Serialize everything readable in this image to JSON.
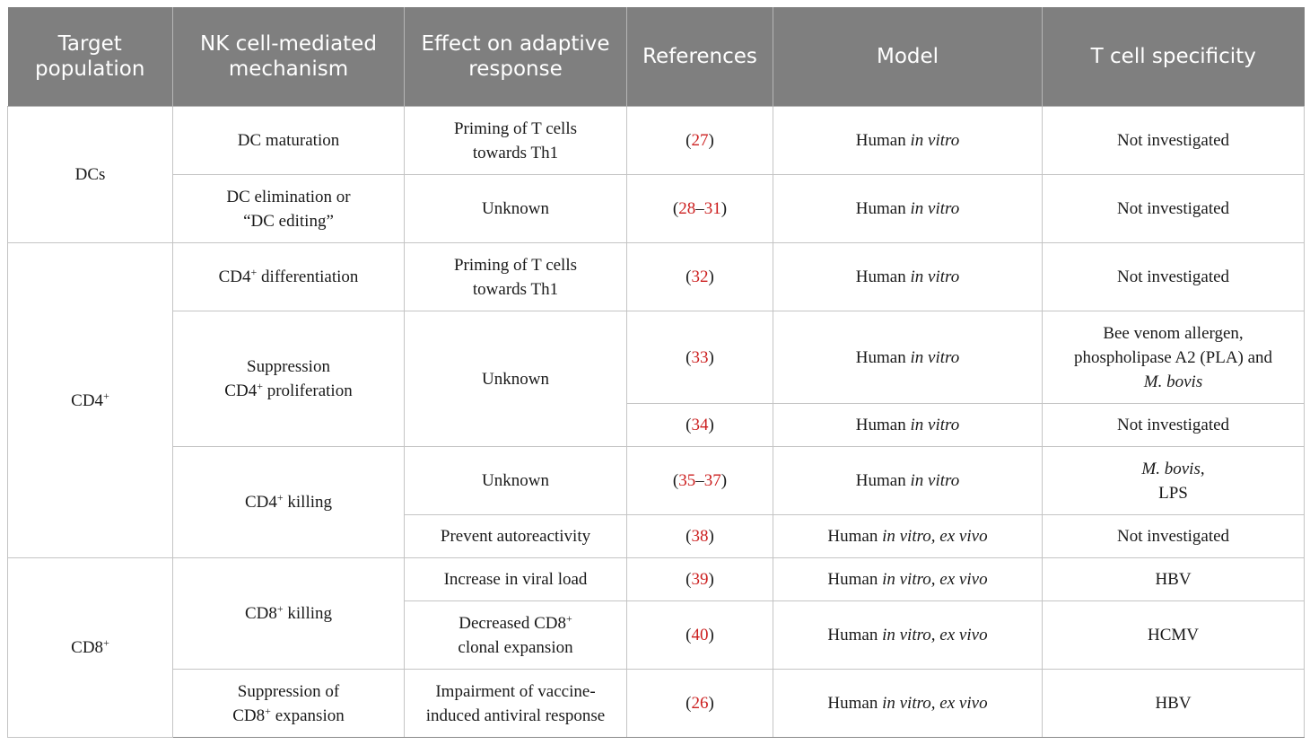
{
  "headers": [
    {
      "text": "Target population"
    },
    {
      "text": "NK cell-mediated mechanism"
    },
    {
      "text": "Effect on adaptive response"
    },
    {
      "text": "References"
    },
    {
      "text": "Model"
    },
    {
      "text": "T cell specificity"
    }
  ],
  "rows": {
    "dc_maturation": {
      "target": "DCs",
      "mechanism": "DC maturation",
      "effect_1": "Priming of T cells",
      "effect_2": "towards Th1",
      "ref": "27",
      "model_prefix": "Human",
      "model_italic": "in vitro",
      "specificity": "Not investigated"
    },
    "dc_elimination": {
      "mechanism_1": "DC elimination or",
      "mechanism_2": "“DC editing”",
      "effect": "Unknown",
      "ref_start": "28",
      "ref_dash": "–",
      "ref_end": "31",
      "model_prefix": "Human",
      "model_italic": "in vitro",
      "specificity": "Not investigated"
    },
    "cd4_diff": {
      "target": "CD4",
      "target_sup": "+",
      "mechanism": "CD4",
      "mechanism_sup": "+",
      "mechanism_rest": " differentiation",
      "effect_1": "Priming of T cells",
      "effect_2": "towards Th1",
      "ref": "32",
      "model_prefix": "Human",
      "model_italic": "in vitro",
      "specificity": "Not investigated"
    },
    "cd4_supp_a": {
      "mechanism_1": "Suppression",
      "mechanism_2": "CD4",
      "mechanism_sup": "+",
      "mechanism_rest": " proliferation",
      "effect": "Unknown",
      "ref": "33",
      "model_prefix": "Human",
      "model_italic": "in vitro",
      "spec_1": "Bee venom allergen,",
      "spec_2": "phospholipase A2 (PLA) and",
      "spec_3": "M. bovis"
    },
    "cd4_supp_b": {
      "ref": "34",
      "model_prefix": "Human",
      "model_italic": "in vitro",
      "specificity": "Not investigated"
    },
    "cd4_kill_a": {
      "mechanism": "CD4",
      "mechanism_sup": "+",
      "mechanism_rest": " killing",
      "effect": "Unknown",
      "ref_start": "35",
      "ref_dash": "–",
      "ref_end": "37",
      "model_prefix": "Human",
      "model_italic": "in vitro",
      "spec_1": "M. bovis",
      "spec_1_rest": ",",
      "spec_2": "LPS"
    },
    "cd4_kill_b": {
      "effect": "Prevent autoreactivity",
      "ref": "38",
      "model_prefix": "Human",
      "model_italic": "in vitro, ex vivo",
      "specificity": "Not investigated"
    },
    "cd8_kill_a": {
      "target": "CD8",
      "target_sup": "+",
      "mechanism": "CD8",
      "mechanism_sup": "+",
      "mechanism_rest": " killing",
      "effect": "Increase in viral load",
      "ref": "39",
      "model_prefix": "Human",
      "model_italic": "in vitro, ex vivo",
      "specificity": "HBV"
    },
    "cd8_kill_b": {
      "effect_1": "Decreased CD8",
      "effect_sup": "+",
      "effect_2": "clonal expansion",
      "ref": "40",
      "model_prefix": "Human",
      "model_italic": "in vitro, ex vivo",
      "specificity": "HCMV"
    },
    "cd8_supp": {
      "mechanism_1": "Suppression of",
      "mechanism_2": "CD8",
      "mechanism_sup": "+",
      "mechanism_rest": " expansion",
      "effect_1": "Impairment of vaccine-",
      "effect_2": "induced antiviral response",
      "ref": "26",
      "model_prefix": "Human",
      "model_italic": "in vitro, ex vivo",
      "specificity": "HBV"
    }
  },
  "ref_open": "(",
  "ref_close": ")"
}
